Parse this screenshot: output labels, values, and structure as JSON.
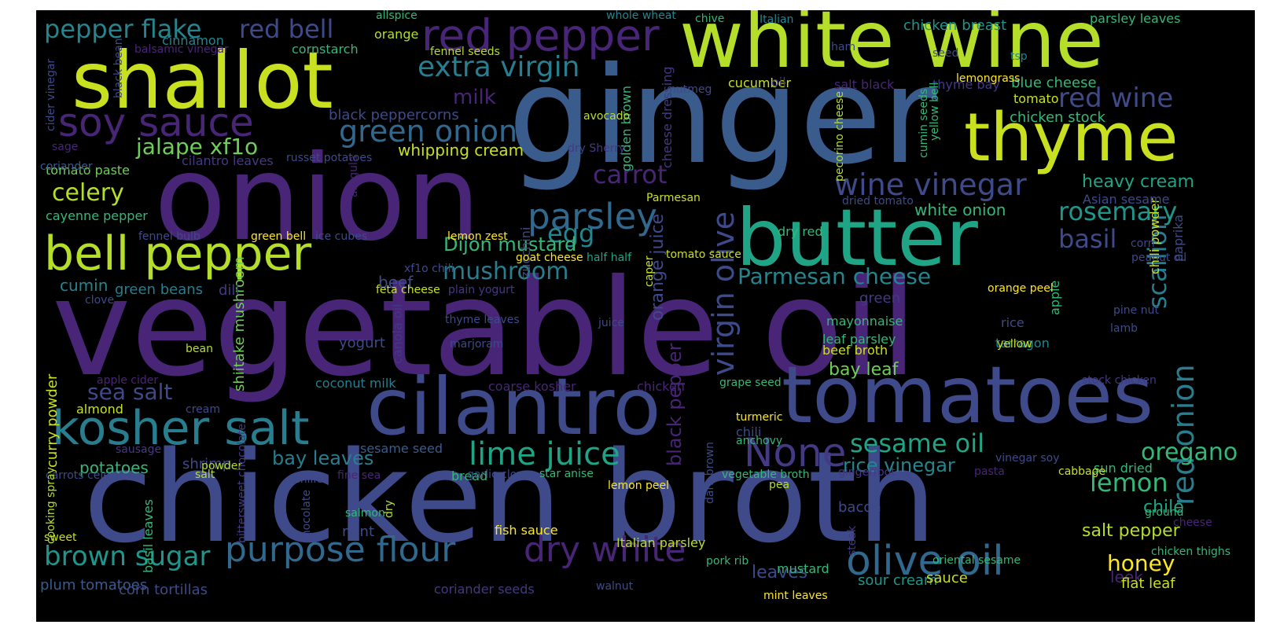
{
  "palette": {
    "background": "#000000",
    "page": "#ffffff",
    "viridis": {
      "dark_purple": "#482576",
      "purple": "#443983",
      "indigo": "#3e4a89",
      "blue": "#3a5c8d",
      "steel": "#31688e",
      "teal_blue": "#287d8e",
      "teal": "#25858e",
      "sea": "#1f968b",
      "green_teal": "#20a486",
      "green": "#35b779",
      "light_green": "#6ece58",
      "lime": "#b5de2b",
      "yellow_green": "#c8e020",
      "yellow": "#fde725"
    }
  },
  "words": [
    {
      "text": "vegetable oil",
      "c": "#482576"
    },
    {
      "text": "ginger",
      "c": "#3a5c8d"
    },
    {
      "text": "onion",
      "c": "#482576"
    },
    {
      "text": "chicken broth",
      "c": "#3e4a89"
    },
    {
      "text": "white wine",
      "c": "#b5de2b"
    },
    {
      "text": "shallot",
      "c": "#c8e020"
    },
    {
      "text": "butter",
      "c": "#20a486"
    },
    {
      "text": "thyme",
      "c": "#c8e020"
    },
    {
      "text": "tomatoes",
      "c": "#3e4a89"
    },
    {
      "text": "cilantro",
      "c": "#3e4a89"
    },
    {
      "text": "kosher salt",
      "c": "#287d8e"
    },
    {
      "text": "bell pepper",
      "c": "#b5de2b"
    },
    {
      "text": "red pepper",
      "c": "#482576"
    },
    {
      "text": "soy sauce",
      "c": "#482576"
    },
    {
      "text": "None",
      "c": "#443983"
    },
    {
      "text": "parsley",
      "c": "#31688e"
    },
    {
      "text": "olive oil",
      "c": "#31688e"
    },
    {
      "text": "lime juice",
      "c": "#20a486"
    },
    {
      "text": "purpose flour",
      "c": "#31688e"
    },
    {
      "text": "dry white",
      "c": "#482576"
    },
    {
      "text": "brown sugar",
      "c": "#1f968b"
    },
    {
      "text": "red onion",
      "c": "#287d8e"
    },
    {
      "text": "green onion",
      "c": "#31688e"
    },
    {
      "text": "wine vinegar",
      "c": "#3e4a89"
    },
    {
      "text": "extra virgin",
      "c": "#287d8e"
    },
    {
      "text": "virgin olive",
      "c": "#3e4a89"
    },
    {
      "text": "red wine",
      "c": "#3e4a89"
    },
    {
      "text": "rosemary",
      "c": "#1f968b"
    },
    {
      "text": "pepper flake",
      "c": "#25858e"
    },
    {
      "text": "red bell",
      "c": "#3e4a89"
    },
    {
      "text": "sesame oil",
      "c": "#20a486"
    },
    {
      "text": "Parmesan cheese",
      "c": "#25858e"
    },
    {
      "text": "mushroom",
      "c": "#287d8e"
    },
    {
      "text": "oregano",
      "c": "#35b779"
    },
    {
      "text": "celery",
      "c": "#b5de2b"
    },
    {
      "text": "carrot",
      "c": "#482576"
    },
    {
      "text": "lemon",
      "c": "#35b779"
    },
    {
      "text": "scallion",
      "c": "#287d8e"
    },
    {
      "text": "egg",
      "c": "#25858e"
    },
    {
      "text": "basil",
      "c": "#3e4a89"
    },
    {
      "text": "jalape xf1o",
      "c": "#6ece58"
    },
    {
      "text": "sea salt",
      "c": "#3e4a89"
    },
    {
      "text": "honey",
      "c": "#fde725"
    },
    {
      "text": "milk",
      "c": "#482576"
    },
    {
      "text": "Dijon mustard",
      "c": "#35b779"
    },
    {
      "text": "heavy cream",
      "c": "#20a486"
    },
    {
      "text": "bay leaves",
      "c": "#287d8e"
    },
    {
      "text": "salt pepper",
      "c": "#b5de2b"
    },
    {
      "text": "orange juice",
      "c": "#3e4a89"
    },
    {
      "text": "black pepper",
      "c": "#482576"
    },
    {
      "text": "white onion",
      "c": "#35b779"
    },
    {
      "text": "bay leaf",
      "c": "#6ece58"
    },
    {
      "text": "chile",
      "c": "#20a486"
    },
    {
      "text": "rice vinegar",
      "c": "#25858e"
    },
    {
      "text": "potatoes",
      "c": "#35b779"
    },
    {
      "text": "whipping cream",
      "c": "#c8e020"
    },
    {
      "text": "leek",
      "c": "#482576"
    },
    {
      "text": "cumin",
      "c": "#25858e"
    },
    {
      "text": "beef",
      "c": "#3e4a89"
    },
    {
      "text": "leaves",
      "c": "#3e4a89"
    },
    {
      "text": "mustard",
      "c": "#35b779"
    },
    {
      "text": "shiitake mushroom",
      "c": "#6ece58"
    },
    {
      "text": "curry powder",
      "c": "#c8e020"
    },
    {
      "text": "chicken breast",
      "c": "#1f968b"
    },
    {
      "text": "blue cheese",
      "c": "#35b779"
    },
    {
      "text": "chicken stock",
      "c": "#35b779"
    },
    {
      "text": "sour cream",
      "c": "#1f968b"
    },
    {
      "text": "plum tomatoes",
      "c": "#3a5c8d"
    },
    {
      "text": "flat leaf",
      "c": "#c8e020"
    },
    {
      "text": "tomato paste",
      "c": "#6ece58"
    },
    {
      "text": "cayenne pepper",
      "c": "#35b779"
    },
    {
      "text": "parsley leaves",
      "c": "#35b779"
    },
    {
      "text": "sauce",
      "c": "#c8e020"
    },
    {
      "text": "yogurt",
      "c": "#3e4a89"
    },
    {
      "text": "cilantro leaves",
      "c": "#443983"
    },
    {
      "text": "coconut milk",
      "c": "#287d8e"
    },
    {
      "text": "mayonnaise",
      "c": "#35b779"
    },
    {
      "text": "tarragon",
      "c": "#25858e"
    },
    {
      "text": "beef broth",
      "c": "#c8e020"
    },
    {
      "text": "leaf parsley",
      "c": "#35b779"
    },
    {
      "text": "shrimp",
      "c": "#3e4a89"
    },
    {
      "text": "black peppercorns",
      "c": "#3e4a89"
    },
    {
      "text": "cornstarch",
      "c": "#35b779"
    },
    {
      "text": "orange",
      "c": "#b5de2b"
    },
    {
      "text": "cinnamon",
      "c": "#25858e"
    },
    {
      "text": "rice",
      "c": "#3e4a89"
    },
    {
      "text": "chili powder",
      "c": "#c8e020"
    },
    {
      "text": "paprika",
      "c": "#3e4a89"
    },
    {
      "text": "dill",
      "c": "#443983"
    },
    {
      "text": "green beans",
      "c": "#287d8e"
    },
    {
      "text": "zucchini",
      "c": "#3e4a89"
    },
    {
      "text": "green",
      "c": "#443983"
    },
    {
      "text": "dry red",
      "c": "#35b779"
    },
    {
      "text": "sun dried",
      "c": "#35b779"
    },
    {
      "text": "Asian sesame",
      "c": "#3e4a89"
    },
    {
      "text": "cucumber",
      "c": "#c8e020"
    },
    {
      "text": "oil",
      "c": "#443983"
    },
    {
      "text": "salt black",
      "c": "#482576"
    },
    {
      "text": "thyme bay",
      "c": "#443983"
    },
    {
      "text": "tomato",
      "c": "#c8e020"
    },
    {
      "text": "golden brown",
      "c": "#35b779"
    },
    {
      "text": "cheese dressing",
      "c": "#443983"
    },
    {
      "text": "almond",
      "c": "#c8e020"
    },
    {
      "text": "bacon",
      "c": "#3e4a89"
    },
    {
      "text": "bread",
      "c": "#35b779"
    },
    {
      "text": "apple",
      "c": "#35b779"
    },
    {
      "text": "canola oil",
      "c": "#443983"
    },
    {
      "text": "fish sauce",
      "c": "#fde725"
    },
    {
      "text": "mint",
      "c": "#3e4a89"
    },
    {
      "text": "Italian parsley",
      "c": "#b5de2b"
    },
    {
      "text": "corn tortillas",
      "c": "#3e4a89"
    },
    {
      "text": "coriander seeds",
      "c": "#443983"
    },
    {
      "text": "sesame seed",
      "c": "#3a5c8d"
    },
    {
      "text": "chicken",
      "c": "#482576"
    },
    {
      "text": "chili",
      "c": "#3e4a89"
    },
    {
      "text": "coarse kosher",
      "c": "#482576"
    },
    {
      "text": "basil leaves",
      "c": "#35b779"
    },
    {
      "text": "sage",
      "c": "#482576"
    },
    {
      "text": "coriander",
      "c": "#3a5c8d"
    },
    {
      "text": "cider vinegar",
      "c": "#3e4a89"
    },
    {
      "text": "fennel bulb",
      "c": "#3e4a89"
    },
    {
      "text": "green bell",
      "c": "#fde725"
    },
    {
      "text": "ice cubes",
      "c": "#3e4a89"
    },
    {
      "text": "lemon zest",
      "c": "#fde725"
    },
    {
      "text": "goat cheese",
      "c": "#fde725"
    },
    {
      "text": "half half",
      "c": "#20a486"
    },
    {
      "text": "tomato sauce",
      "c": "#c8e020"
    },
    {
      "text": "xf1o chili",
      "c": "#3e4a89"
    },
    {
      "text": "feta cheese",
      "c": "#c8e020"
    },
    {
      "text": "plain yogurt",
      "c": "#443983"
    },
    {
      "text": "thyme leaves",
      "c": "#3e4a89"
    },
    {
      "text": "juice",
      "c": "#3e4a89"
    },
    {
      "text": "marjoram",
      "c": "#3e4a89"
    },
    {
      "text": "clove",
      "c": "#3e4a89"
    },
    {
      "text": "bean",
      "c": "#b5de2b"
    },
    {
      "text": "apple cider",
      "c": "#482576"
    },
    {
      "text": "cream",
      "c": "#3e4a89"
    },
    {
      "text": "sausage",
      "c": "#443983"
    },
    {
      "text": "powder",
      "c": "#b5de2b"
    },
    {
      "text": "carrots celery",
      "c": "#3e4a89"
    },
    {
      "text": "salt",
      "c": "#b5de2b"
    },
    {
      "text": "cooking spray",
      "c": "#b5de2b"
    },
    {
      "text": "sweet",
      "c": "#c8e020"
    },
    {
      "text": "chilies",
      "c": "#3e4a89"
    },
    {
      "text": "bittersweet chocolate",
      "c": "#443983"
    },
    {
      "text": "chocolate",
      "c": "#3e4a89"
    },
    {
      "text": "salmon",
      "c": "#35b779"
    },
    {
      "text": "dry",
      "c": "#b5de2b"
    },
    {
      "text": "fine sea",
      "c": "#482576"
    },
    {
      "text": "garlic clove",
      "c": "#3e4a89"
    },
    {
      "text": "star anise",
      "c": "#35b779"
    },
    {
      "text": "lemon peel",
      "c": "#fde725"
    },
    {
      "text": "dark brown",
      "c": "#3e4a89"
    },
    {
      "text": "vegetable broth",
      "c": "#35b779"
    },
    {
      "text": "pea",
      "c": "#b5de2b"
    },
    {
      "text": "pork rib",
      "c": "#35b779"
    },
    {
      "text": "steak",
      "c": "#443983"
    },
    {
      "text": "walnut",
      "c": "#3e4a89"
    },
    {
      "text": "mint leaves",
      "c": "#fde725"
    },
    {
      "text": "oriental sesame",
      "c": "#35b779"
    },
    {
      "text": "chicken thighs",
      "c": "#35b779"
    },
    {
      "text": "cheese",
      "c": "#482576"
    },
    {
      "text": "ground",
      "c": "#35b779"
    },
    {
      "text": "pasta",
      "c": "#482576"
    },
    {
      "text": "cabbage",
      "c": "#c8e020"
    },
    {
      "text": "vinegar soy",
      "c": "#3e4a89"
    },
    {
      "text": "gingerroot",
      "c": "#443983"
    },
    {
      "text": "stock chicken",
      "c": "#443983"
    },
    {
      "text": "anchovy",
      "c": "#35b779"
    },
    {
      "text": "turmeric",
      "c": "#fde725"
    },
    {
      "text": "grape seed",
      "c": "#35b779"
    },
    {
      "text": "caper",
      "c": "#c8e020"
    },
    {
      "text": "orange peel",
      "c": "#fde725"
    },
    {
      "text": "pine nut",
      "c": "#3e4a89"
    },
    {
      "text": "lamb",
      "c": "#3e4a89"
    },
    {
      "text": "yellow",
      "c": "#c8e020"
    },
    {
      "text": "corn",
      "c": "#3e4a89"
    },
    {
      "text": "peanut oil",
      "c": "#3e4a89"
    },
    {
      "text": "dried tomato",
      "c": "#3e4a89"
    },
    {
      "text": "Parmesan",
      "c": "#c8e020"
    },
    {
      "text": "dry Sherry",
      "c": "#443983"
    },
    {
      "text": "avocado",
      "c": "#b5de2b"
    },
    {
      "text": "nutmeg",
      "c": "#3e4a89"
    },
    {
      "text": "pecorino cheese",
      "c": "#b5de2b"
    },
    {
      "text": "cumin seeds",
      "c": "#35b779"
    },
    {
      "text": "yellow bell",
      "c": "#35b779"
    },
    {
      "text": "lemongrass",
      "c": "#fde725"
    },
    {
      "text": "seed",
      "c": "#3e4a89"
    },
    {
      "text": "tsp",
      "c": "#25858e"
    },
    {
      "text": "ham",
      "c": "#3e4a89"
    },
    {
      "text": "chive",
      "c": "#35b779"
    },
    {
      "text": "Italian",
      "c": "#25858e"
    },
    {
      "text": "whole wheat",
      "c": "#25858e"
    },
    {
      "text": "allspice",
      "c": "#35b779"
    },
    {
      "text": "fennel seeds",
      "c": "#b5de2b"
    },
    {
      "text": "balsamic vinegar",
      "c": "#482576"
    },
    {
      "text": "black bean",
      "c": "#3e4a89"
    },
    {
      "text": "russet potatoes",
      "c": "#3e4a89"
    },
    {
      "text": "arugula",
      "c": "#482576"
    }
  ]
}
